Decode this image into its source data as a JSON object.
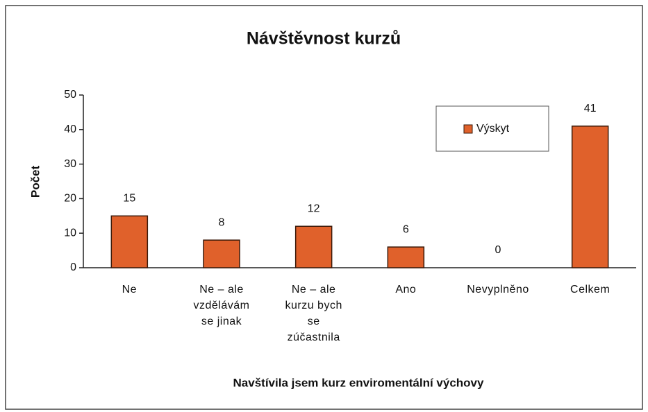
{
  "chart_data": {
    "type": "bar",
    "title": "Návštěvnost kurzů",
    "x_label": "Navštívila jsem kurz enviromentální výchovy",
    "y_label": "Počet",
    "categories": [
      "Ne",
      "Ne – ale vzdělávám se jinak",
      "Ne – ale kurzu bych se zúčastnila",
      "Ano",
      "Nevyplněno",
      "Celkem"
    ],
    "series": [
      {
        "name": "Výskyt",
        "color": "#e0612b",
        "values": [
          15,
          8,
          12,
          6,
          0,
          41
        ]
      }
    ],
    "ylim": [
      0,
      50
    ],
    "yticks": [
      0,
      10,
      20,
      30,
      40,
      50
    ],
    "legend": "upper right"
  }
}
